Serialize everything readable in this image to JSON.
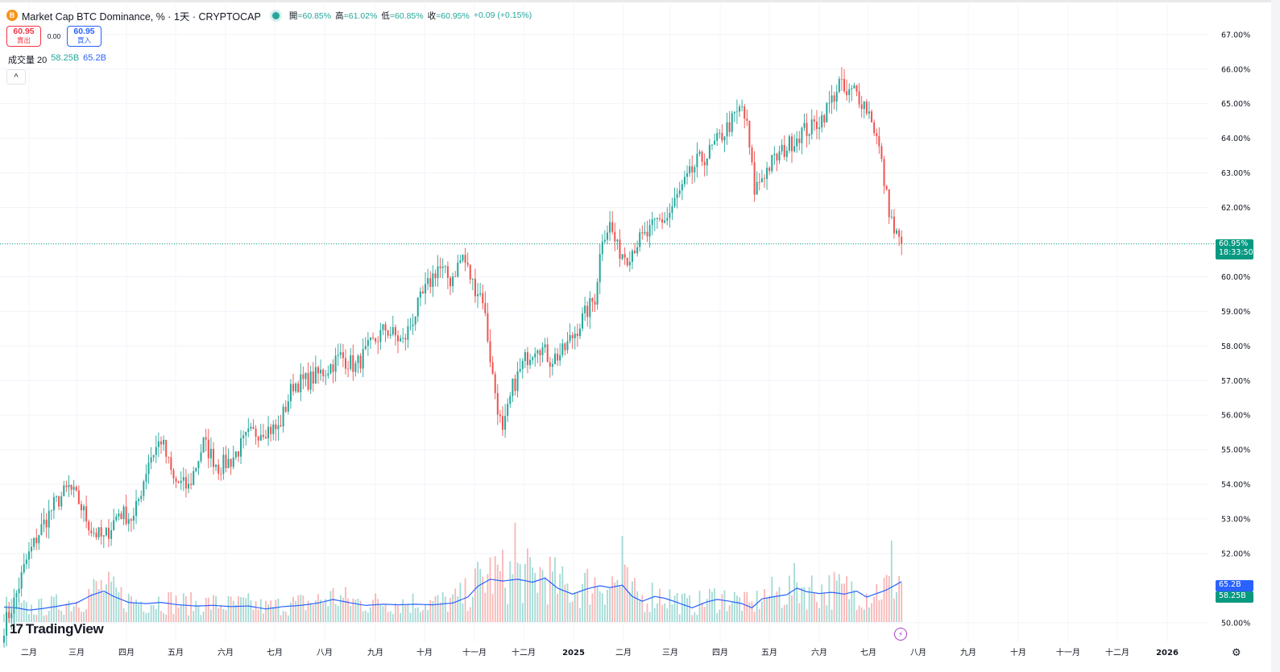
{
  "header": {
    "coin_icon": "B",
    "title": "Market Cap BTC Dominance, % · 1天 · CRYPTOCAP",
    "ohlc": [
      {
        "label": "開",
        "value": "=60.85%"
      },
      {
        "label": "高",
        "value": "=61.02%"
      },
      {
        "label": "低",
        "value": "=60.85%"
      },
      {
        "label": "收",
        "value": "=60.95%"
      }
    ],
    "change": "+0.09 (+0.15%)"
  },
  "trade": {
    "sell_price": "60.95",
    "sell_label": "賣出",
    "spread": "0.00",
    "buy_price": "60.95",
    "buy_label": "買入"
  },
  "volume_legend": {
    "label": "成交量 20",
    "value1": "58.25B",
    "value2": "65.2B"
  },
  "collapse_icon": "^",
  "brand": {
    "mark": "17",
    "name": "TradingView"
  },
  "price_tag": {
    "value": "60.95%",
    "countdown": "18:33:50"
  },
  "volume_tags": {
    "blue": "65.2B",
    "green": "58.25B"
  },
  "flash_icon": "lightning-icon",
  "gear_icon": "⚙",
  "colors": {
    "up": "#26a69a",
    "down": "#ef5350",
    "ma": "#2962ff",
    "last": "#089981"
  },
  "chart_data": {
    "type": "candlestick",
    "title": "Market Cap BTC Dominance, %",
    "interval": "1天",
    "source": "CRYPTOCAP",
    "y_unit": "%",
    "y_range": [
      49.8,
      67.2
    ],
    "y_ticks": [
      {
        "value": 67,
        "label": "67.00%"
      },
      {
        "value": 66,
        "label": "66.00%"
      },
      {
        "value": 65,
        "label": "65.00%"
      },
      {
        "value": 64,
        "label": "64.00%"
      },
      {
        "value": 63,
        "label": "63.00%"
      },
      {
        "value": 62,
        "label": "62.00%"
      },
      {
        "value": 60,
        "label": "60.00%"
      },
      {
        "value": 59,
        "label": "59.00%"
      },
      {
        "value": 58,
        "label": "58.00%"
      },
      {
        "value": 57,
        "label": "57.00%"
      },
      {
        "value": 56,
        "label": "56.00%"
      },
      {
        "value": 55,
        "label": "55.00%"
      },
      {
        "value": 54,
        "label": "54.00%"
      },
      {
        "value": 53,
        "label": "53.00%"
      },
      {
        "value": 52,
        "label": "52.00%"
      },
      {
        "value": 50,
        "label": "50.00%"
      }
    ],
    "x_ticks": [
      "二月",
      "三月",
      "四月",
      "五月",
      "六月",
      "七月",
      "八月",
      "九月",
      "十月",
      "十一月",
      "十二月",
      "2025",
      "二月",
      "三月",
      "四月",
      "五月",
      "六月",
      "七月",
      "八月",
      "九月",
      "十月",
      "十一月",
      "十二月",
      "2026"
    ],
    "last_price": 60.95,
    "price_anchors": [
      [
        0,
        49.9
      ],
      [
        4,
        50.6
      ],
      [
        9,
        51.8
      ],
      [
        14,
        52.6
      ],
      [
        20,
        53.4
      ],
      [
        26,
        53.9
      ],
      [
        30,
        53.5
      ],
      [
        35,
        52.7
      ],
      [
        40,
        52.4
      ],
      [
        46,
        53.2
      ],
      [
        52,
        53.0
      ],
      [
        58,
        54.7
      ],
      [
        63,
        55.3
      ],
      [
        68,
        54.1
      ],
      [
        74,
        53.9
      ],
      [
        80,
        55.2
      ],
      [
        86,
        54.5
      ],
      [
        91,
        54.7
      ],
      [
        98,
        55.4
      ],
      [
        104,
        55.6
      ],
      [
        110,
        55.6
      ],
      [
        116,
        56.9
      ],
      [
        122,
        57.0
      ],
      [
        129,
        57.3
      ],
      [
        135,
        57.7
      ],
      [
        141,
        57.4
      ],
      [
        147,
        58.0
      ],
      [
        153,
        58.5
      ],
      [
        160,
        58.1
      ],
      [
        167,
        59.3
      ],
      [
        174,
        60.3
      ],
      [
        179,
        59.9
      ],
      [
        184,
        60.6
      ],
      [
        188,
        59.8
      ],
      [
        192,
        59.4
      ],
      [
        196,
        57.1
      ],
      [
        200,
        55.4
      ],
      [
        204,
        56.8
      ],
      [
        209,
        57.6
      ],
      [
        214,
        58.1
      ],
      [
        219,
        57.6
      ],
      [
        224,
        57.8
      ],
      [
        229,
        58.4
      ],
      [
        233,
        58.9
      ],
      [
        237,
        59.4
      ],
      [
        240,
        61.2
      ],
      [
        243,
        61.5
      ],
      [
        246,
        60.8
      ],
      [
        250,
        60.6
      ],
      [
        254,
        61.0
      ],
      [
        258,
        61.2
      ],
      [
        262,
        61.6
      ],
      [
        266,
        61.7
      ],
      [
        270,
        62.3
      ],
      [
        274,
        62.8
      ],
      [
        278,
        63.3
      ],
      [
        282,
        63.5
      ],
      [
        287,
        64.0
      ],
      [
        292,
        64.5
      ],
      [
        296,
        64.9
      ],
      [
        298,
        64.3
      ],
      [
        301,
        62.5
      ],
      [
        304,
        62.9
      ],
      [
        308,
        63.3
      ],
      [
        312,
        63.6
      ],
      [
        316,
        63.9
      ],
      [
        320,
        64.2
      ],
      [
        324,
        64.3
      ],
      [
        328,
        64.6
      ],
      [
        332,
        65.1
      ],
      [
        335,
        65.6
      ],
      [
        338,
        65.2
      ],
      [
        341,
        65.4
      ],
      [
        345,
        65.0
      ],
      [
        348,
        64.6
      ],
      [
        351,
        63.7
      ],
      [
        354,
        62.3
      ],
      [
        357,
        61.3
      ],
      [
        360,
        60.95
      ]
    ],
    "volume_ma": {
      "name": "成交量 MA 20",
      "anchors": [
        [
          0,
          0.25
        ],
        [
          5,
          0.24
        ],
        [
          10,
          0.2
        ],
        [
          16,
          0.23
        ],
        [
          22,
          0.27
        ],
        [
          29,
          0.32
        ],
        [
          35,
          0.45
        ],
        [
          40,
          0.52
        ],
        [
          44,
          0.43
        ],
        [
          50,
          0.33
        ],
        [
          57,
          0.31
        ],
        [
          63,
          0.33
        ],
        [
          70,
          0.29
        ],
        [
          77,
          0.27
        ],
        [
          84,
          0.28
        ],
        [
          91,
          0.26
        ],
        [
          98,
          0.27
        ],
        [
          105,
          0.22
        ],
        [
          112,
          0.26
        ],
        [
          119,
          0.28
        ],
        [
          126,
          0.32
        ],
        [
          132,
          0.38
        ],
        [
          138,
          0.33
        ],
        [
          145,
          0.28
        ],
        [
          152,
          0.3
        ],
        [
          158,
          0.29
        ],
        [
          165,
          0.3
        ],
        [
          172,
          0.29
        ],
        [
          180,
          0.32
        ],
        [
          186,
          0.42
        ],
        [
          190,
          0.6
        ],
        [
          195,
          0.72
        ],
        [
          200,
          0.69
        ],
        [
          206,
          0.72
        ],
        [
          212,
          0.67
        ],
        [
          217,
          0.74
        ],
        [
          222,
          0.57
        ],
        [
          228,
          0.47
        ],
        [
          234,
          0.56
        ],
        [
          239,
          0.61
        ],
        [
          243,
          0.58
        ],
        [
          248,
          0.62
        ],
        [
          252,
          0.43
        ],
        [
          256,
          0.35
        ],
        [
          261,
          0.43
        ],
        [
          265,
          0.4
        ],
        [
          270,
          0.33
        ],
        [
          276,
          0.24
        ],
        [
          282,
          0.34
        ],
        [
          286,
          0.38
        ],
        [
          291,
          0.35
        ],
        [
          296,
          0.31
        ],
        [
          300,
          0.24
        ],
        [
          304,
          0.39
        ],
        [
          308,
          0.42
        ],
        [
          314,
          0.46
        ],
        [
          318,
          0.57
        ],
        [
          322,
          0.51
        ],
        [
          327,
          0.48
        ],
        [
          332,
          0.5
        ],
        [
          337,
          0.47
        ],
        [
          342,
          0.52
        ],
        [
          346,
          0.42
        ],
        [
          350,
          0.48
        ],
        [
          354,
          0.54
        ],
        [
          360,
          0.68
        ]
      ]
    },
    "volume_values": {
      "ma": "65.2B",
      "current": "58.25B",
      "max_visible_ratio": 2.1
    }
  }
}
